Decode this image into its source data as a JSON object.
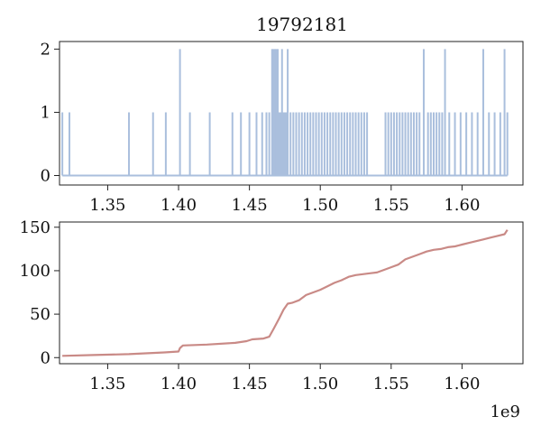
{
  "chart_data": [
    {
      "type": "line",
      "title": "19792181",
      "xlabel": "",
      "ylabel": "",
      "xlim": [
        1316000000,
        1643000000
      ],
      "ylim": [
        -0.15,
        2.12
      ],
      "xticks": [
        1350000000,
        1400000000,
        1450000000,
        1500000000,
        1550000000,
        1600000000
      ],
      "xtick_labels": [
        "1.35",
        "1.40",
        "1.45",
        "1.50",
        "1.55",
        "1.60"
      ],
      "yticks": [
        0,
        1,
        2
      ],
      "ytick_labels": [
        "0",
        "1",
        "2"
      ],
      "grid": false,
      "colors": {
        "line": "#aabfdd"
      },
      "spikes": [
        {
          "x": 1318000000,
          "v": 1
        },
        {
          "x": 1323000000,
          "v": 1
        },
        {
          "x": 1365000000,
          "v": 1
        },
        {
          "x": 1382000000,
          "v": 1
        },
        {
          "x": 1391000000,
          "v": 1
        },
        {
          "x": 1401000000,
          "v": 2
        },
        {
          "x": 1408000000,
          "v": 1
        },
        {
          "x": 1422000000,
          "v": 1
        },
        {
          "x": 1438000000,
          "v": 1
        },
        {
          "x": 1444000000,
          "v": 1
        },
        {
          "x": 1450000000,
          "v": 1
        },
        {
          "x": 1455000000,
          "v": 1
        },
        {
          "x": 1459000000,
          "v": 1
        },
        {
          "x": 1462000000,
          "v": 1
        },
        {
          "x": 1464000000,
          "v": 1
        },
        {
          "x": 1466000000,
          "v": 2
        },
        {
          "x": 1467000000,
          "v": 2
        },
        {
          "x": 1468000000,
          "v": 2
        },
        {
          "x": 1469000000,
          "v": 2
        },
        {
          "x": 1470000000,
          "v": 2
        },
        {
          "x": 1471000000,
          "v": 1
        },
        {
          "x": 1472000000,
          "v": 1
        },
        {
          "x": 1473000000,
          "v": 2
        },
        {
          "x": 1474000000,
          "v": 1
        },
        {
          "x": 1475000000,
          "v": 1
        },
        {
          "x": 1476000000,
          "v": 1
        },
        {
          "x": 1477000000,
          "v": 2
        },
        {
          "x": 1479000000,
          "v": 1
        },
        {
          "x": 1481000000,
          "v": 1
        },
        {
          "x": 1483000000,
          "v": 1
        },
        {
          "x": 1485000000,
          "v": 1
        },
        {
          "x": 1487000000,
          "v": 1
        },
        {
          "x": 1489000000,
          "v": 1
        },
        {
          "x": 1491000000,
          "v": 1
        },
        {
          "x": 1493000000,
          "v": 1
        },
        {
          "x": 1495000000,
          "v": 1
        },
        {
          "x": 1497000000,
          "v": 1
        },
        {
          "x": 1499000000,
          "v": 1
        },
        {
          "x": 1501000000,
          "v": 1
        },
        {
          "x": 1503000000,
          "v": 1
        },
        {
          "x": 1505000000,
          "v": 1
        },
        {
          "x": 1507000000,
          "v": 1
        },
        {
          "x": 1509000000,
          "v": 1
        },
        {
          "x": 1511000000,
          "v": 1
        },
        {
          "x": 1513000000,
          "v": 1
        },
        {
          "x": 1515000000,
          "v": 1
        },
        {
          "x": 1517000000,
          "v": 1
        },
        {
          "x": 1519000000,
          "v": 1
        },
        {
          "x": 1521000000,
          "v": 1
        },
        {
          "x": 1523000000,
          "v": 1
        },
        {
          "x": 1525000000,
          "v": 1
        },
        {
          "x": 1527000000,
          "v": 1
        },
        {
          "x": 1529000000,
          "v": 1
        },
        {
          "x": 1531000000,
          "v": 1
        },
        {
          "x": 1533000000,
          "v": 1
        },
        {
          "x": 1546000000,
          "v": 1
        },
        {
          "x": 1548000000,
          "v": 1
        },
        {
          "x": 1550000000,
          "v": 1
        },
        {
          "x": 1552000000,
          "v": 1
        },
        {
          "x": 1554000000,
          "v": 1
        },
        {
          "x": 1556000000,
          "v": 1
        },
        {
          "x": 1558000000,
          "v": 1
        },
        {
          "x": 1560000000,
          "v": 1
        },
        {
          "x": 1562000000,
          "v": 1
        },
        {
          "x": 1564000000,
          "v": 1
        },
        {
          "x": 1566000000,
          "v": 1
        },
        {
          "x": 1568000000,
          "v": 1
        },
        {
          "x": 1570000000,
          "v": 1
        },
        {
          "x": 1573000000,
          "v": 2
        },
        {
          "x": 1576000000,
          "v": 1
        },
        {
          "x": 1578000000,
          "v": 1
        },
        {
          "x": 1580000000,
          "v": 1
        },
        {
          "x": 1582000000,
          "v": 1
        },
        {
          "x": 1584000000,
          "v": 1
        },
        {
          "x": 1586000000,
          "v": 1
        },
        {
          "x": 1588000000,
          "v": 2
        },
        {
          "x": 1591000000,
          "v": 1
        },
        {
          "x": 1595000000,
          "v": 1
        },
        {
          "x": 1599000000,
          "v": 1
        },
        {
          "x": 1603000000,
          "v": 1
        },
        {
          "x": 1607000000,
          "v": 1
        },
        {
          "x": 1611000000,
          "v": 1
        },
        {
          "x": 1615000000,
          "v": 2
        },
        {
          "x": 1619000000,
          "v": 1
        },
        {
          "x": 1623000000,
          "v": 1
        },
        {
          "x": 1627000000,
          "v": 1
        },
        {
          "x": 1630000000,
          "v": 2
        },
        {
          "x": 1632000000,
          "v": 1
        }
      ]
    },
    {
      "type": "line",
      "title": "",
      "xlabel": "",
      "ylabel": "",
      "x_offset_label": "1e9",
      "xlim": [
        1316000000,
        1643000000
      ],
      "ylim": [
        -7,
        156
      ],
      "xticks": [
        1350000000,
        1400000000,
        1450000000,
        1500000000,
        1550000000,
        1600000000
      ],
      "xtick_labels": [
        "1.35",
        "1.40",
        "1.45",
        "1.50",
        "1.55",
        "1.60"
      ],
      "yticks": [
        0,
        50,
        100,
        150
      ],
      "ytick_labels": [
        "0",
        "50",
        "100",
        "150"
      ],
      "grid": false,
      "colors": {
        "line": "#c98a86"
      },
      "x": [
        1318000000,
        1340000000,
        1365000000,
        1390000000,
        1400000000,
        1401000000,
        1403000000,
        1420000000,
        1440000000,
        1448000000,
        1452000000,
        1460000000,
        1464000000,
        1467000000,
        1471000000,
        1474000000,
        1477000000,
        1480000000,
        1485000000,
        1490000000,
        1495000000,
        1500000000,
        1505000000,
        1510000000,
        1515000000,
        1520000000,
        1525000000,
        1530000000,
        1535000000,
        1540000000,
        1545000000,
        1550000000,
        1555000000,
        1560000000,
        1565000000,
        1570000000,
        1575000000,
        1580000000,
        1585000000,
        1590000000,
        1595000000,
        1600000000,
        1605000000,
        1610000000,
        1615000000,
        1620000000,
        1625000000,
        1630000000,
        1632000000
      ],
      "y": [
        2,
        3,
        4,
        6,
        7,
        11,
        14,
        15,
        17,
        19,
        21,
        22,
        24,
        33,
        45,
        55,
        62,
        63,
        66,
        72,
        75,
        78,
        82,
        86,
        89,
        93,
        95,
        96,
        97,
        98,
        101,
        104,
        107,
        113,
        116,
        119,
        122,
        124,
        125,
        127,
        128,
        130,
        132,
        134,
        136,
        138,
        140,
        142,
        147
      ]
    }
  ]
}
